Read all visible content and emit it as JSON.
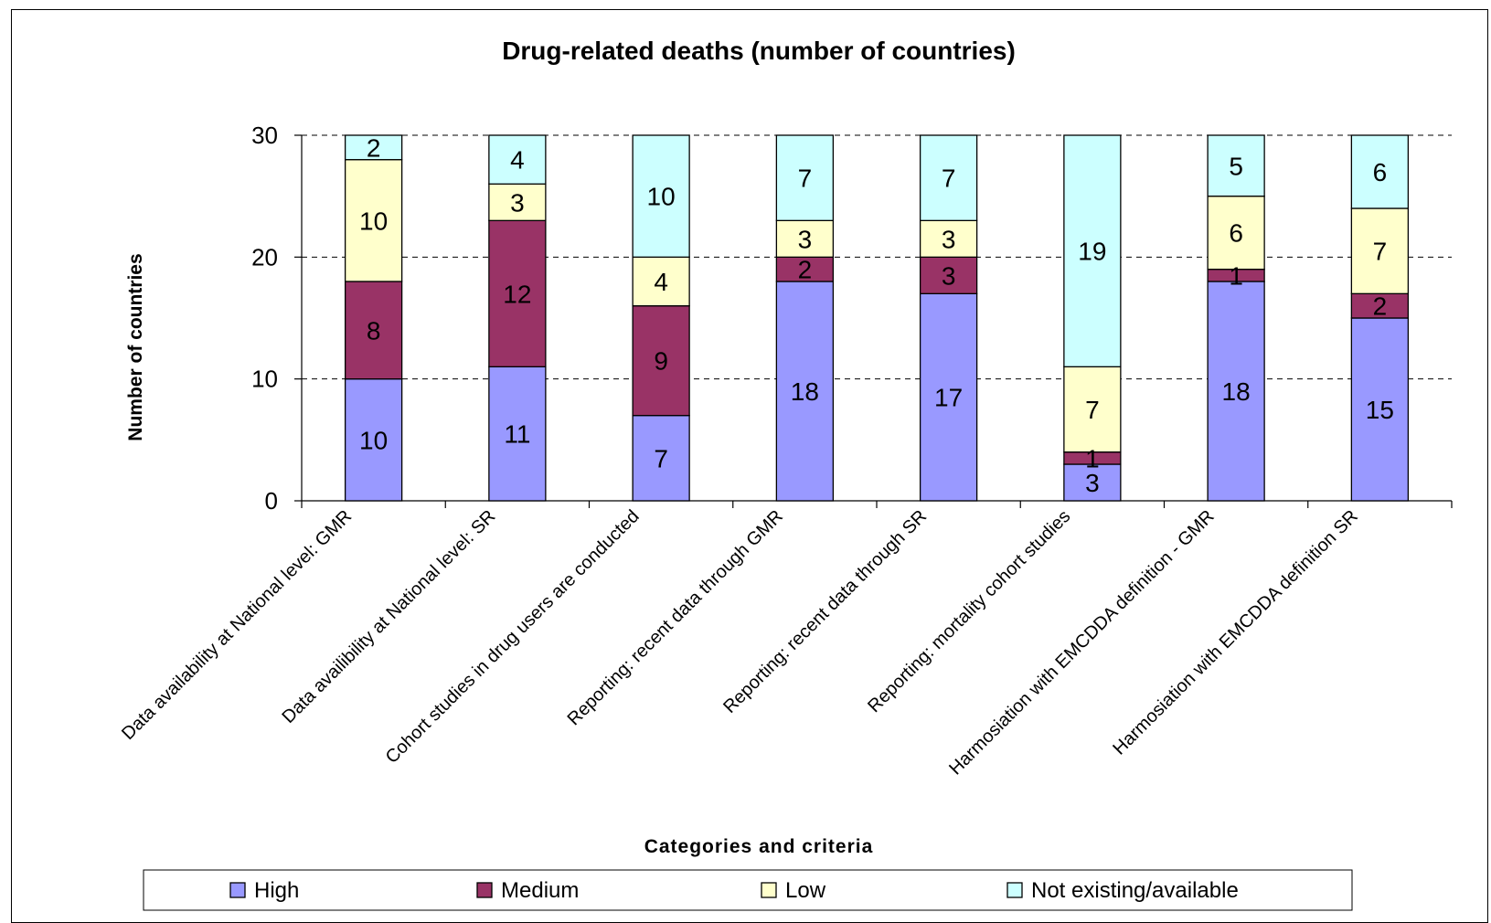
{
  "chart_data": {
    "type": "bar",
    "stacked": true,
    "title": "Drug-related deaths (number of countries)",
    "xlabel": "Categories and criteria",
    "ylabel": "Number of countries",
    "ylim": [
      0,
      30
    ],
    "yticks": [
      0,
      10,
      20,
      30
    ],
    "grid": true,
    "legend_position": "bottom",
    "categories": [
      "Data availability at National level: GMR",
      "Data availibility at National level: SR",
      "Cohort studies in drug users are conducted",
      "Reporting: recent data through GMR",
      "Reporting: recent data through SR",
      "Reporting: mortality cohort studies",
      "Harmosiation with EMCDDA definition - GMR",
      "Harmosiation with EMCDDA definition SR"
    ],
    "series": [
      {
        "name": "High",
        "color": "#9999ff",
        "values": [
          10,
          11,
          7,
          18,
          17,
          3,
          18,
          15
        ]
      },
      {
        "name": "Medium",
        "color": "#993366",
        "values": [
          8,
          12,
          9,
          2,
          3,
          1,
          1,
          2
        ]
      },
      {
        "name": "Low",
        "color": "#ffffcc",
        "values": [
          10,
          3,
          4,
          3,
          3,
          7,
          6,
          7
        ]
      },
      {
        "name": "Not existing/available",
        "color": "#ccffff",
        "values": [
          2,
          4,
          10,
          7,
          7,
          19,
          5,
          6
        ]
      }
    ]
  }
}
